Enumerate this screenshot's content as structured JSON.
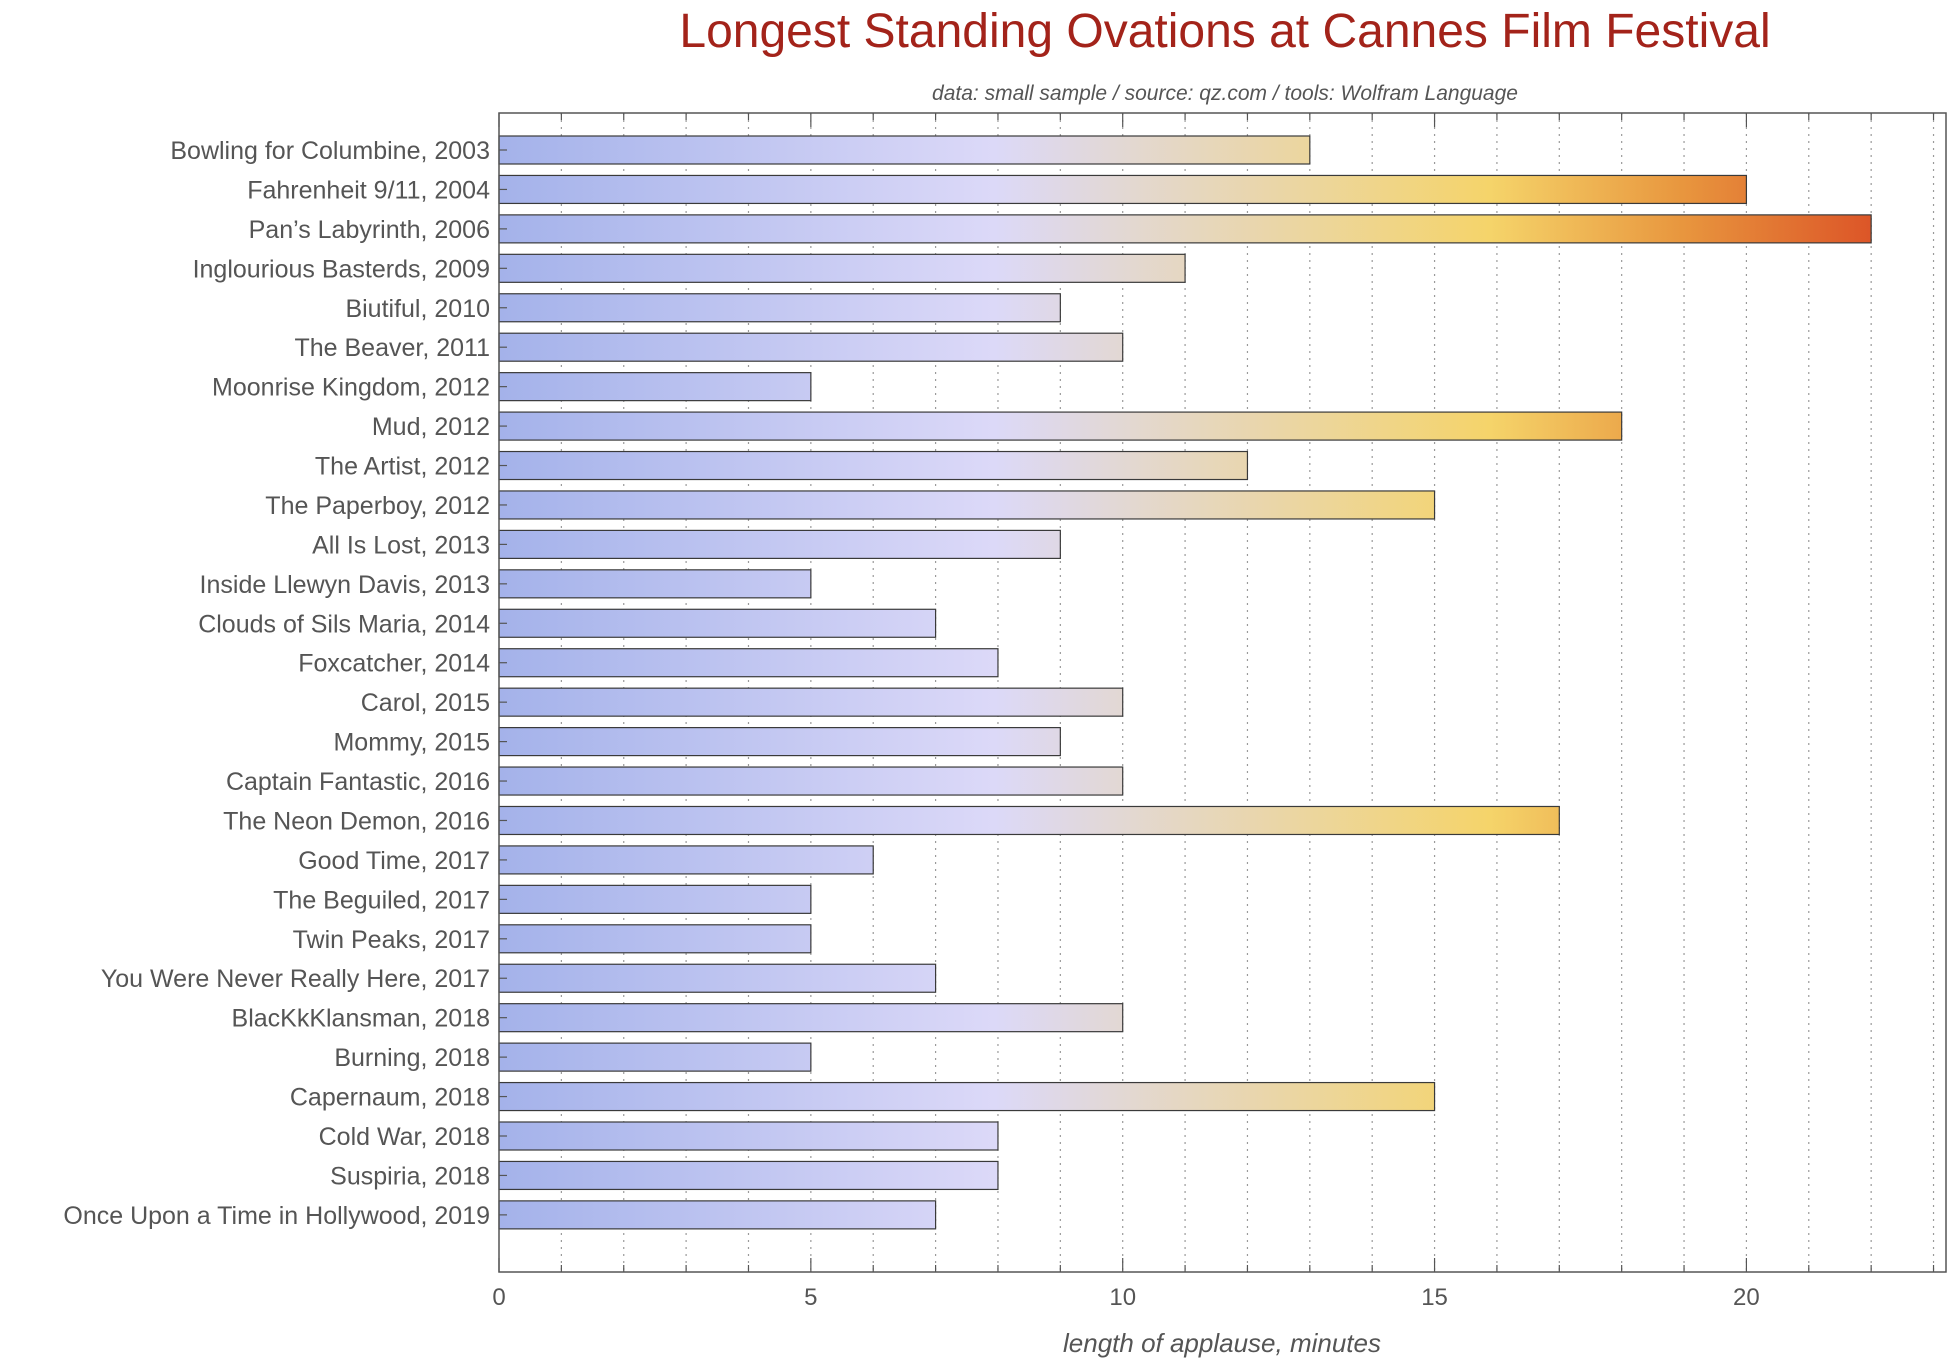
{
  "chart_data": {
    "type": "bar",
    "orientation": "horizontal",
    "title": "Longest Standing Ovations at Cannes Film Festival",
    "subtitle": "data: small sample / source: qz.com / tools: Wolfram Language",
    "xlabel": "length of applause, minutes",
    "ylabel": "",
    "xlim": [
      0,
      23.2
    ],
    "x_ticks": [
      0,
      5,
      10,
      15,
      20
    ],
    "grid": "vertical dotted every 1 minute",
    "legend": "none",
    "colors": {
      "title": "#a3231a",
      "text": "#555555",
      "gradient": [
        "#a4b2ea",
        "#dcd9f8",
        "#f5d46a",
        "#e8963e",
        "#dc5427"
      ]
    },
    "categories": [
      "Bowling for Columbine, 2003",
      "Fahrenheit 9/11, 2004",
      "Pan’s Labyrinth, 2006",
      "Inglourious Basterds, 2009",
      "Biutiful, 2010",
      "The Beaver, 2011",
      "Moonrise Kingdom, 2012",
      "Mud, 2012",
      "The Artist, 2012",
      "The Paperboy, 2012",
      "All Is Lost, 2013",
      "Inside Llewyn Davis, 2013",
      "Clouds of Sils Maria, 2014",
      "Foxcatcher, 2014",
      "Carol, 2015",
      "Mommy, 2015",
      "Captain Fantastic, 2016",
      "The Neon Demon, 2016",
      "Good Time, 2017",
      "The Beguiled, 2017",
      "Twin Peaks, 2017",
      "You Were Never Really Here, 2017",
      "BlacKkKlansman, 2018",
      "Burning, 2018",
      "Capernaum, 2018",
      "Cold War, 2018",
      "Suspiria, 2018",
      "Once Upon a Time in Hollywood, 2019"
    ],
    "values": [
      13,
      20,
      22,
      11,
      9,
      10,
      5,
      18,
      12,
      15,
      9,
      5,
      7,
      8,
      10,
      9,
      10,
      17,
      6,
      5,
      5,
      7,
      10,
      5,
      15,
      8,
      8,
      7
    ]
  }
}
